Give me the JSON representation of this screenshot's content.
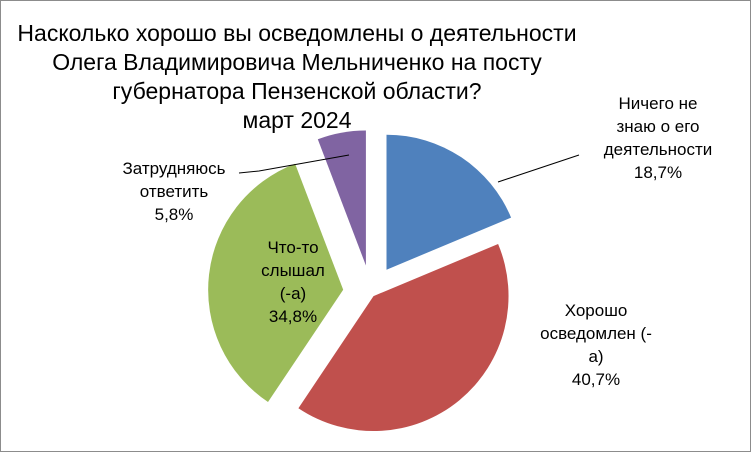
{
  "chart_data": {
    "type": "pie",
    "title_lines": [
      "Насколько хорошо вы осведомлены о деятельности",
      "Олега Владимировича Мельниченко на посту",
      "губернатора Пензенской области?",
      "март 2024"
    ],
    "legend": "none",
    "slices": [
      {
        "label_lines": [
          "Ничего не",
          "знаю о его",
          "деятельности"
        ],
        "value": 18.7,
        "value_label": "18,7%",
        "color": "#4f81bd"
      },
      {
        "label_lines": [
          "Хорошо",
          "осведомлен (-",
          "а)"
        ],
        "value": 40.7,
        "value_label": "40,7%",
        "color": "#c0504d"
      },
      {
        "label_lines": [
          "Что-то",
          "слышал",
          "(-а)"
        ],
        "value": 34.8,
        "value_label": "34,8%",
        "color": "#9bbb59"
      },
      {
        "label_lines": [
          "Затрудняюсь",
          "ответить"
        ],
        "value": 5.8,
        "value_label": "5,8%",
        "color": "#8064a2"
      }
    ]
  }
}
